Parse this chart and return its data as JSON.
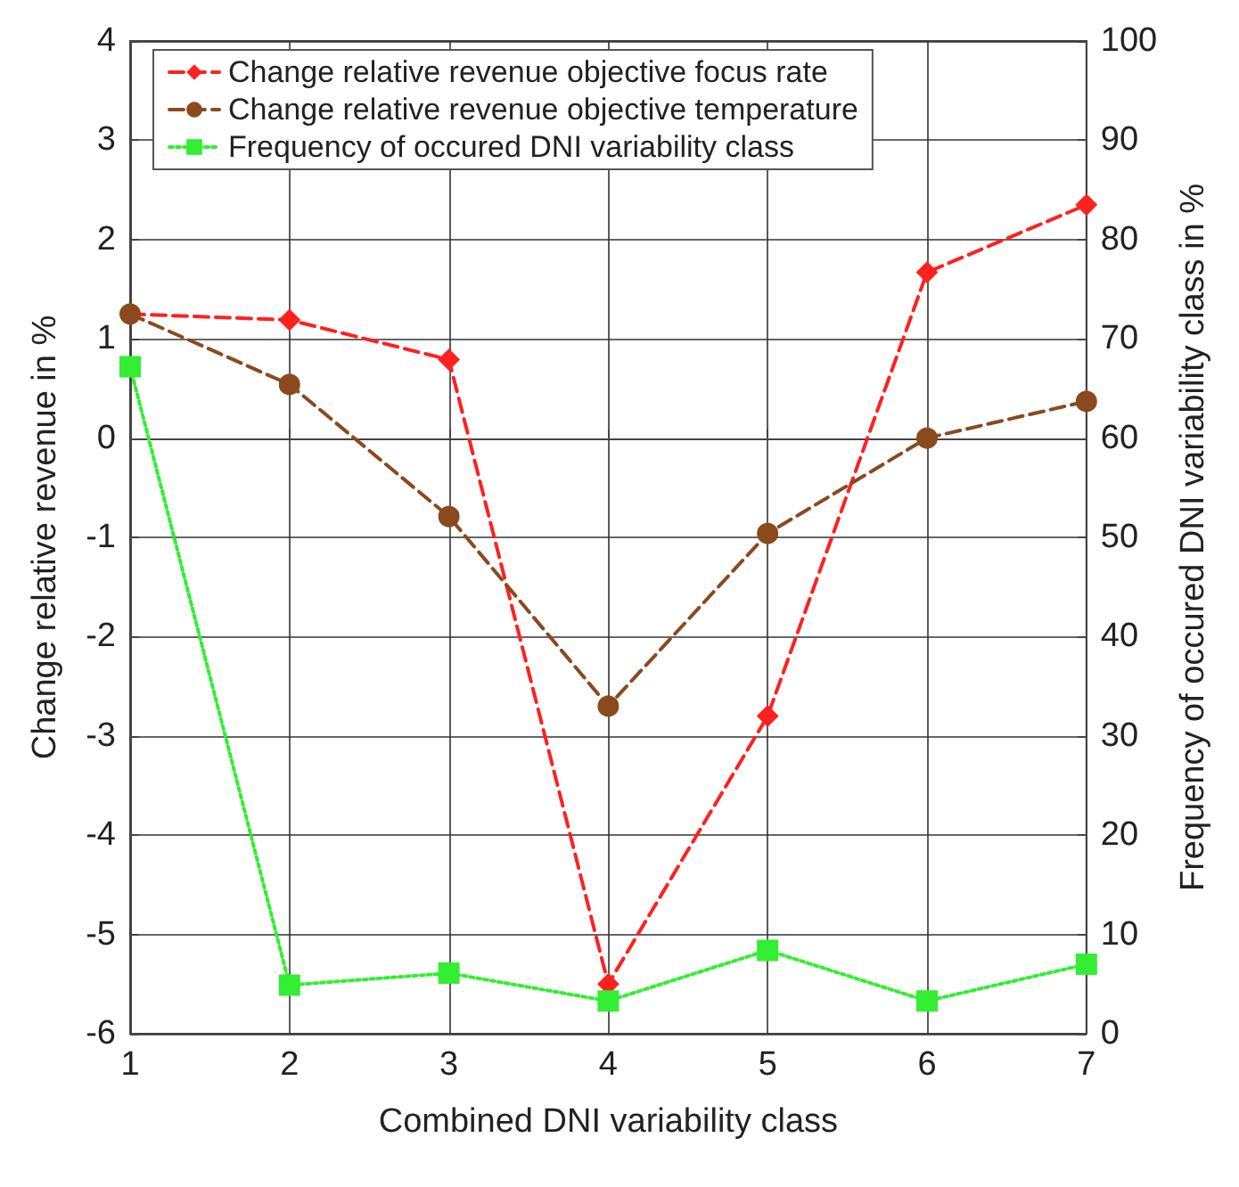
{
  "chart_data": {
    "type": "line",
    "xlabel": "Combined DNI variability class",
    "ylabel": "Change relative revenue in %",
    "y2label": "Frequency of occured DNI variability class in %",
    "x": [
      1,
      2,
      3,
      4,
      5,
      6,
      7
    ],
    "series": [
      {
        "name": "Change relative revenue objective focus rate",
        "color": "#ff2020",
        "values": [
          1.25,
          1.19,
          0.79,
          -5.5,
          -2.8,
          1.67,
          2.35
        ],
        "marker": "diamond",
        "line_style": "dashed"
      },
      {
        "name": "Change relative revenue objective temperature",
        "color": "#8b4a1e",
        "values": [
          1.25,
          0.54,
          -0.79,
          -2.7,
          -0.96,
          0,
          0.37
        ],
        "marker": "circle",
        "line_style": "dashed"
      },
      {
        "name": "Frequency of occured DNI variability class",
        "color": "#33ee33",
        "values": [
          67.2,
          4.9,
          6.1,
          3.3,
          8.4,
          3.3,
          7.0
        ],
        "marker": "square",
        "line_style": "dotted",
        "axis": "y2"
      }
    ],
    "xlim": [
      1,
      7
    ],
    "xticks": [
      1,
      2,
      3,
      4,
      5,
      6,
      7
    ],
    "ylim": [
      -6,
      4
    ],
    "yticks": [
      -6,
      -5,
      -4,
      -3,
      -2,
      -1,
      0,
      1,
      2,
      3,
      4
    ],
    "y2lim": [
      0,
      100
    ],
    "y2ticks": [
      0,
      10,
      20,
      30,
      40,
      50,
      60,
      70,
      80,
      90,
      100
    ],
    "grid": true,
    "legend": "top left"
  }
}
